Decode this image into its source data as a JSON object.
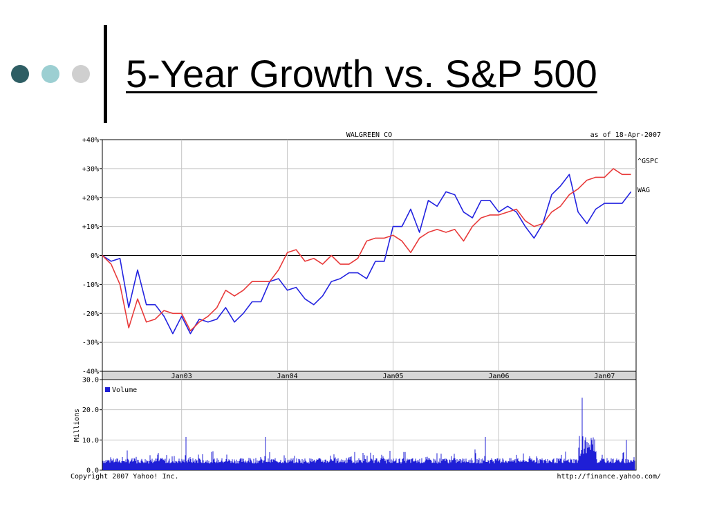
{
  "slide": {
    "title": "5-Year Growth vs. S&P 500"
  },
  "colors": {
    "wag": "#2323e0",
    "gspc": "#e83a3a",
    "volume": "#1f1fd6",
    "grid": "#c4c4c4",
    "dots": [
      "#2e5e64",
      "#9ccfd2",
      "#cfcfcf"
    ]
  },
  "chart_data": [
    {
      "type": "line",
      "title": "WALGREEN CO",
      "subtitle": "as of 18-Apr-2007",
      "xlabel": "",
      "ylabel": "",
      "x_tick_labels": [
        "Jan03",
        "Jan04",
        "Jan05",
        "Jan06",
        "Jan07"
      ],
      "y_tick_labels": [
        "+40%",
        "+30%",
        "+20%",
        "+10%",
        "0%",
        "-10%",
        "-20%",
        "-30%",
        "-40%"
      ],
      "ylim": [
        -40,
        40
      ],
      "x": [
        "Apr02",
        "May02",
        "Jun02",
        "Jul02",
        "Aug02",
        "Sep02",
        "Oct02",
        "Nov02",
        "Dec02",
        "Jan03",
        "Feb03",
        "Mar03",
        "Apr03",
        "May03",
        "Jun03",
        "Jul03",
        "Aug03",
        "Sep03",
        "Oct03",
        "Nov03",
        "Dec03",
        "Jan04",
        "Feb04",
        "Mar04",
        "Apr04",
        "May04",
        "Jun04",
        "Jul04",
        "Aug04",
        "Sep04",
        "Oct04",
        "Nov04",
        "Dec04",
        "Jan05",
        "Feb05",
        "Mar05",
        "Apr05",
        "May05",
        "Jun05",
        "Jul05",
        "Aug05",
        "Sep05",
        "Oct05",
        "Nov05",
        "Dec05",
        "Jan06",
        "Feb06",
        "Mar06",
        "Apr06",
        "May06",
        "Jun06",
        "Jul06",
        "Aug06",
        "Sep06",
        "Oct06",
        "Nov06",
        "Dec06",
        "Jan07",
        "Feb07",
        "Mar07",
        "Apr07"
      ],
      "series": [
        {
          "name": "^GSPC",
          "values": [
            0,
            -3,
            -10,
            -25,
            -15,
            -23,
            -22,
            -19,
            -20,
            -20,
            -26,
            -23,
            -21,
            -18,
            -12,
            -14,
            -12,
            -9,
            -9,
            -9,
            -5,
            1,
            2,
            -2,
            -1,
            -3,
            0,
            -3,
            -3,
            -1,
            5,
            6,
            6,
            7,
            5,
            1,
            6,
            8,
            9,
            8,
            9,
            5,
            10,
            13,
            14,
            14,
            15,
            16,
            12,
            10,
            11,
            15,
            17,
            21,
            23,
            26,
            27,
            27,
            30,
            28,
            28
          ]
        },
        {
          "name": "WAG",
          "values": [
            0,
            -2,
            -1,
            -18,
            -5,
            -17,
            -17,
            -21,
            -27,
            -21,
            -27,
            -22,
            -23,
            -22,
            -18,
            -23,
            -20,
            -16,
            -16,
            -9,
            -8,
            -12,
            -11,
            -15,
            -17,
            -14,
            -9,
            -8,
            -6,
            -6,
            -8,
            -2,
            -2,
            10,
            10,
            16,
            8,
            19,
            17,
            22,
            21,
            15,
            13,
            19,
            19,
            15,
            17,
            15,
            10,
            6,
            11,
            21,
            24,
            28,
            15,
            11,
            16,
            18,
            18,
            18,
            22
          ]
        }
      ]
    },
    {
      "type": "bar",
      "title": "",
      "legend": "Volume",
      "ylabel": "Millions",
      "y_tick_labels": [
        "30.0",
        "20.0",
        "10.0",
        "0.0"
      ],
      "ylim": [
        0,
        30
      ],
      "peak_values_millions": [
        {
          "date": "Jan03",
          "value": 11
        },
        {
          "date": "Oct03",
          "value": 11
        },
        {
          "date": "Nov05",
          "value": 11
        },
        {
          "date": "Oct06",
          "value": 26
        },
        {
          "date": "Oct06",
          "value": 24
        },
        {
          "date": "Mar07",
          "value": 10
        }
      ]
    }
  ],
  "footer": {
    "copyright": "Copyright 2007 Yahoo! Inc.",
    "url": "http://finance.yahoo.com/"
  }
}
